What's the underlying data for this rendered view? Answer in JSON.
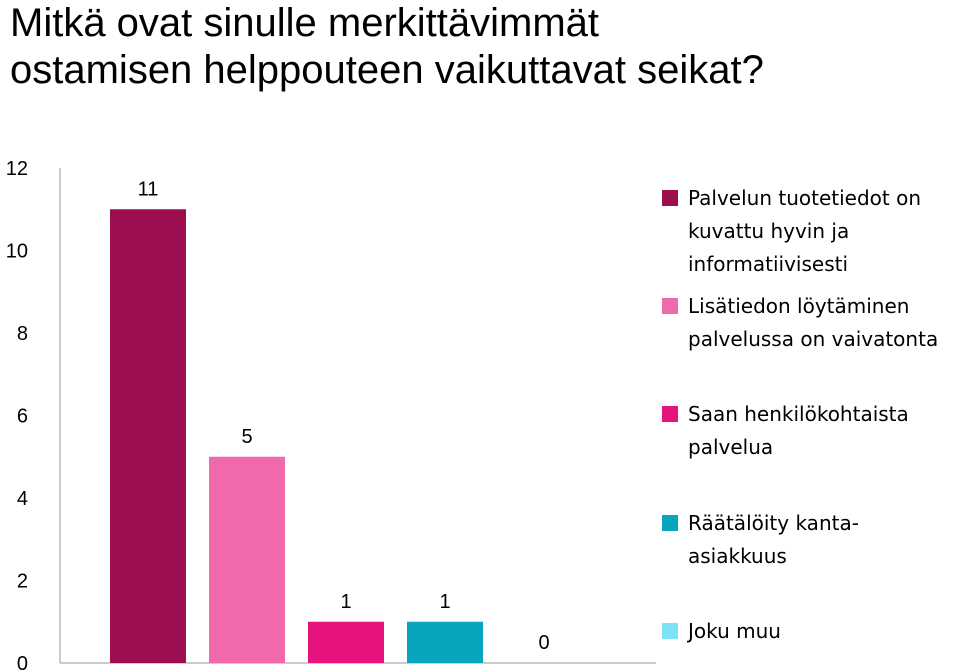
{
  "title": {
    "line1": "Mitkä ovat sinulle merkittävimmät",
    "line2": "ostamisen helppouteen vaikuttavat seikat?"
  },
  "chart_data": {
    "type": "bar",
    "title": "Mitkä ovat sinulle merkittävimmät ostamisen helppouteen vaikuttavat seikat?",
    "xlabel": "",
    "ylabel": "",
    "ylim": [
      0,
      12
    ],
    "yticks": [
      "0",
      "2",
      "4",
      "6",
      "8",
      "10",
      "12"
    ],
    "grid": false,
    "legend_position": "right",
    "series": [
      {
        "name": "Palvelun tuotetiedot on kuvattu hyvin ja informatiivisesti",
        "value": 11,
        "color": "#9C0E50"
      },
      {
        "name": "Lisätiedon löytäminen palvelussa on vaivatonta",
        "value": 5,
        "color": "#F06AAB"
      },
      {
        "name": "Saan henkilökohtaista palvelua",
        "value": 1,
        "color": "#E6127E"
      },
      {
        "name": "Räätälöity kanta-asiakkuus",
        "value": 1,
        "color": "#07A5BE"
      },
      {
        "name": "Joku muu",
        "value": 0,
        "color": "#7DE3F4"
      }
    ]
  },
  "legend": [
    {
      "text": "Palvelun tuotetiedot on\nkuvattu hyvin ja\ninformatiivisesti"
    },
    {
      "text": "Lisätiedon löytäminen\npalvelussa on vaivatonta"
    },
    {
      "text": "Saan henkilökohtaista\npalvelua"
    },
    {
      "text": "Räätälöity kanta-\nasiakkuus"
    },
    {
      "text": "Joku muu"
    }
  ]
}
